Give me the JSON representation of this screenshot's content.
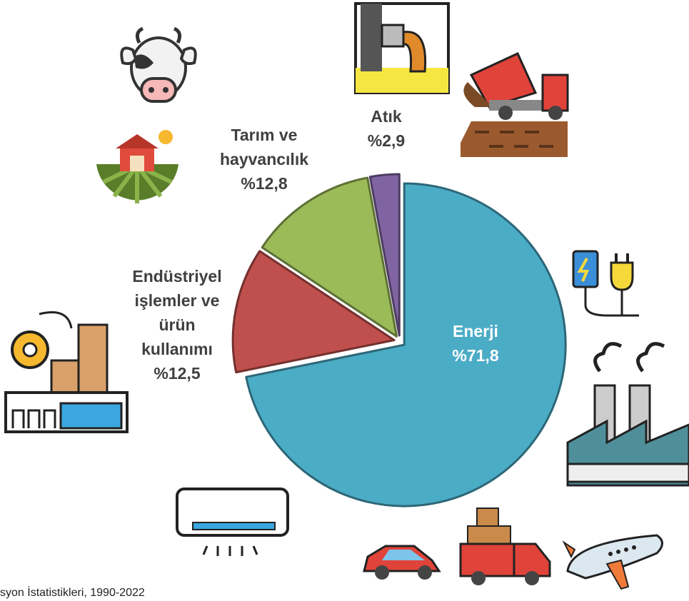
{
  "chart_data": {
    "type": "pie",
    "categories": [
      "Enerji",
      "Endüstriyel işlemler ve ürün kullanımı",
      "Tarım ve hayvancılık",
      "Atık"
    ],
    "values": [
      71.8,
      12.5,
      12.8,
      2.9
    ],
    "value_labels": [
      "%71,8",
      "%12,5",
      "%12,8",
      "%2,9"
    ],
    "colors": [
      "#4bacc6",
      "#c0504d",
      "#9bbb59",
      "#8064a2"
    ],
    "source": "syon İstatistikleri, 1990-2022"
  }
}
